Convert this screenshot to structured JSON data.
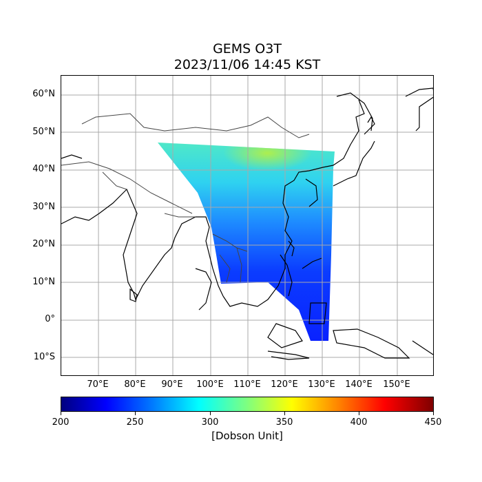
{
  "title": {
    "line1": "GEMS O3T",
    "line2": "2023/11/06 14:45 KST"
  },
  "map": {
    "lon_range": [
      60,
      160
    ],
    "lat_range": [
      -15,
      65
    ],
    "lat_labels": [
      "60°N",
      "50°N",
      "40°N",
      "30°N",
      "20°N",
      "10°N",
      "0°",
      "10°S"
    ],
    "lat_values": [
      60,
      50,
      40,
      30,
      20,
      10,
      0,
      -10
    ],
    "lon_labels": [
      "70°E",
      "80°E",
      "90°E",
      "100°E",
      "110°E",
      "120°E",
      "130°E",
      "140°E",
      "150°E"
    ],
    "lon_values": [
      70,
      80,
      90,
      100,
      110,
      120,
      130,
      140,
      150
    ],
    "grid": true
  },
  "colorbar": {
    "min": 200,
    "max": 450,
    "tick_labels": [
      "200",
      "250",
      "300",
      "350",
      "400",
      "450"
    ],
    "tick_values": [
      200,
      250,
      300,
      350,
      400,
      450
    ],
    "unit": "[Dobson Unit]",
    "colormap": "jet"
  }
}
